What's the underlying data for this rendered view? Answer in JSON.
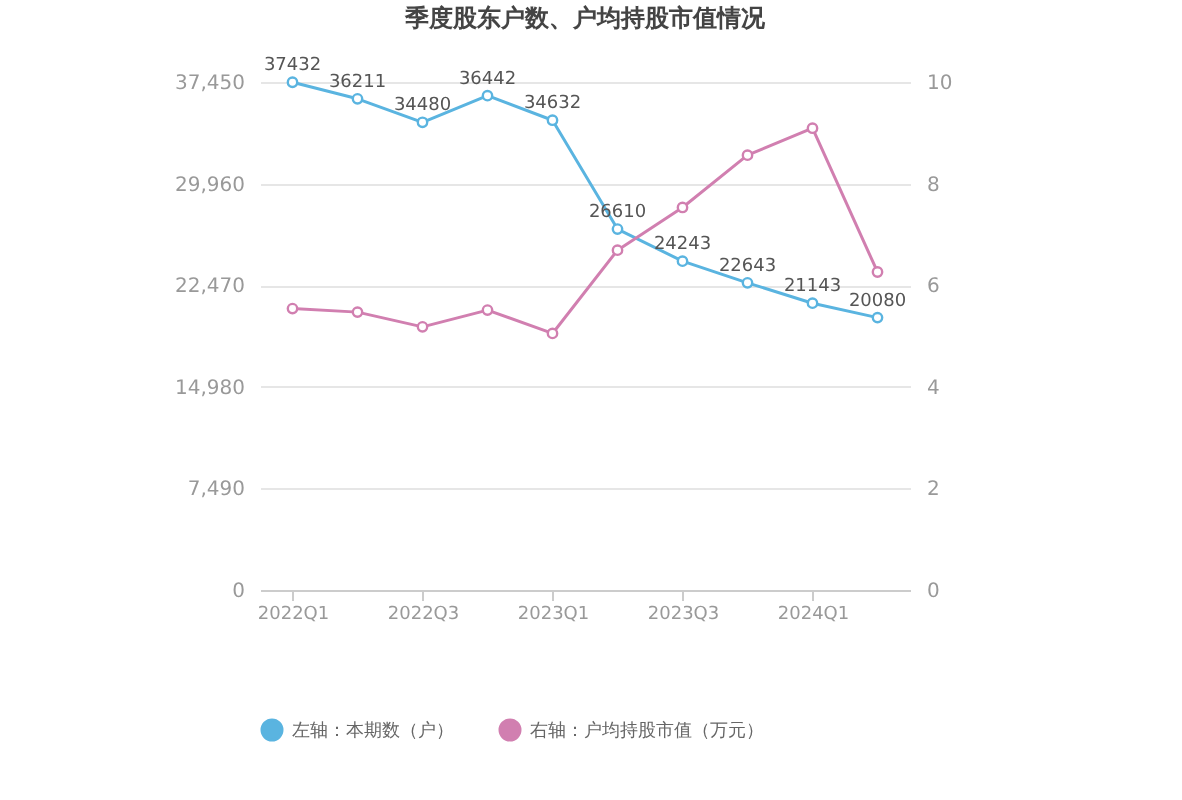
{
  "chart_data": {
    "type": "line",
    "title": "季度股东户数、户均持股市值情况",
    "categories": [
      "2022Q1",
      null,
      "2022Q3",
      null,
      "2023Q1",
      null,
      "2023Q3",
      null,
      "2024Q1",
      null
    ],
    "series": [
      {
        "name": "左轴：本期数（户）",
        "color": "#5ab4e0",
        "values": [
          37432,
          36211,
          34480,
          36442,
          34632,
          26610,
          24243,
          22643,
          21143,
          20080
        ],
        "value_labels": [
          "37432",
          "36211",
          "34480",
          "36442",
          "34632",
          "26610",
          "24243",
          "22643",
          "21143",
          "20080"
        ]
      },
      {
        "name": "右轴：户均持股市值（万元）",
        "color": "#d17fb0",
        "axis": "y2",
        "values": [
          5.54,
          5.47,
          5.18,
          5.51,
          5.05,
          6.69,
          7.53,
          8.56,
          9.09,
          6.26
        ]
      }
    ],
    "ylim": [
      0,
      37450
    ],
    "yticks": [
      0,
      {
        "value": 7490,
        "label": "7,490"
      },
      {
        "value": 14980,
        "label": "14,980"
      },
      {
        "value": 22470,
        "label": "22,470"
      },
      {
        "value": 29960,
        "label": "29,960"
      },
      {
        "value": 37450,
        "label": "37,450"
      }
    ],
    "y2lim": [
      0,
      10
    ],
    "y2ticks": [
      0,
      2,
      4,
      6,
      8,
      10
    ],
    "grid": "y",
    "legend": "bottom",
    "marker": "circle",
    "line_style": "solid"
  }
}
